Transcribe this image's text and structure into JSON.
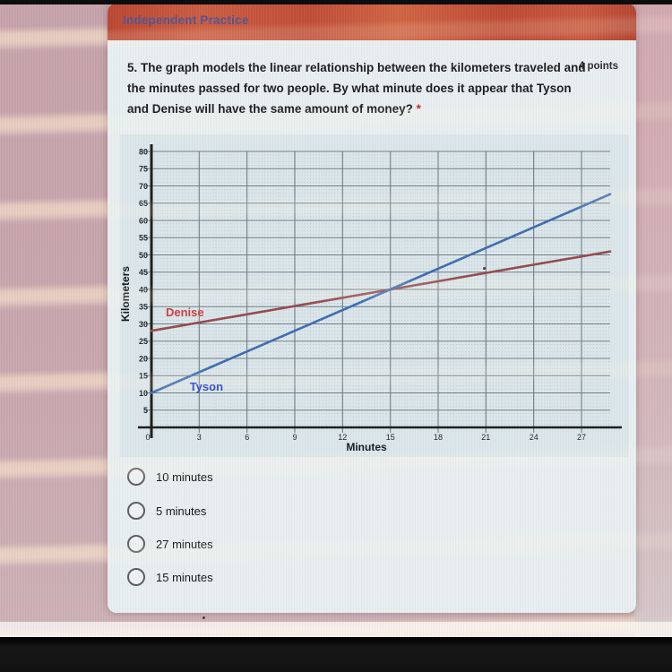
{
  "header": {
    "title": "Independent Practice"
  },
  "question": {
    "text": "5. The graph models the linear relationship between the kilometers traveled and the minutes passed for two people. By what minute does it appear that Tyson and Denise will have the same amount of money?",
    "required_mark": "*",
    "points_label": "4 points"
  },
  "chart_data": {
    "type": "line",
    "title": "",
    "xlabel": "Minutes",
    "ylabel": "Kilometers",
    "xlim": [
      0,
      28.8
    ],
    "ylim": [
      0,
      80
    ],
    "x_ticks": [
      0,
      3,
      6,
      9,
      12,
      15,
      18,
      21,
      24,
      27
    ],
    "y_ticks": [
      80,
      75,
      70,
      65,
      60,
      55,
      50,
      45,
      40,
      35,
      30,
      25,
      20,
      15,
      10,
      5
    ],
    "origin_label": "0",
    "grid": "major solid every 3 min and 5 km; faint dotted minor every 1 min and 1 km",
    "legend_position": "labels next to lines",
    "series": [
      {
        "name": "Denise",
        "color": "#96494e",
        "label_color": "#d23c3c",
        "label_pos": [
          0.9,
          32.2
        ],
        "points": [
          [
            0,
            28
          ],
          [
            28.8,
            51
          ]
        ],
        "intercept_km": 28,
        "slope_km_per_min": 0.8
      },
      {
        "name": "Tyson",
        "color": "#3c6cb4",
        "label_color": "#1f3ed6",
        "label_pos": [
          2.4,
          10.6
        ],
        "points": [
          [
            0,
            10
          ],
          [
            28.8,
            67.6
          ]
        ],
        "intercept_km": 10,
        "slope_km_per_min": 2
      }
    ],
    "intersection_point": [
      15,
      40
    ]
  },
  "options": [
    {
      "label": "10 minutes"
    },
    {
      "label": "5 minutes"
    },
    {
      "label": "27 minutes"
    },
    {
      "label": "15 minutes"
    }
  ],
  "colors": {
    "header_bar": "#c54b34",
    "header_text": "#44549e",
    "card_bg": "#e8eef0",
    "chart_bg": "#dbe6ea",
    "photo_margin": "#c6a2aa",
    "required_mark": "#cc2222"
  }
}
